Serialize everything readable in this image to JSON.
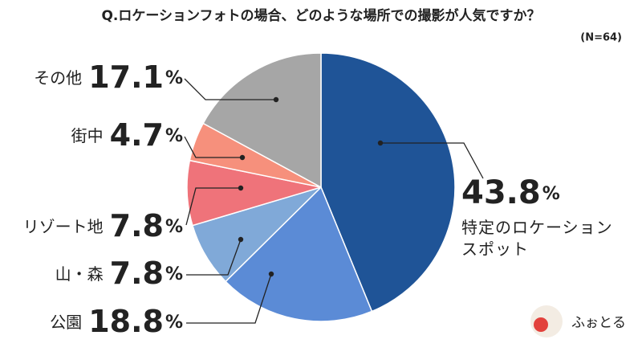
{
  "chart_data": {
    "type": "pie",
    "title": "Q.ロケーションフォトの場合、どのような場所での撮影が人気ですか？",
    "subtitle": "(N=64)",
    "categories": [
      "特定のロケーションスポット",
      "公園",
      "山・森",
      "リゾート地",
      "街中",
      "その他"
    ],
    "values": [
      43.8,
      18.8,
      7.8,
      7.8,
      4.7,
      17.1
    ],
    "colors": [
      "#1f5497",
      "#5b8bd6",
      "#80a9d8",
      "#ef737a",
      "#f6907c",
      "#a6a6a6"
    ],
    "unit": "%",
    "logo": "ふぉとる"
  }
}
